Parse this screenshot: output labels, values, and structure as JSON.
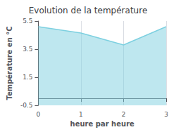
{
  "chart_data": {
    "type": "area",
    "title": "Evolution de la température",
    "xlabel": "heure par heure",
    "ylabel": "Température en °C",
    "x": [
      0,
      1,
      2,
      3
    ],
    "values": [
      5.1,
      4.65,
      3.8,
      5.1
    ],
    "color": "#7dd0e0",
    "xlim": [
      0,
      3
    ],
    "ylim": [
      -0.5,
      5.5
    ],
    "xticks": [
      0,
      1,
      2,
      3
    ],
    "yticks": [
      -0.5,
      1.5,
      3.5,
      5.5
    ],
    "grid": "x"
  }
}
